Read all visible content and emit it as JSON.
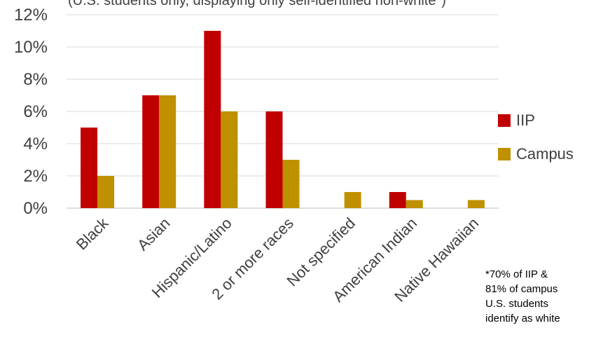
{
  "chart_data": {
    "type": "bar",
    "subtitle": "(U.S. students only, displaying only self-identified non-white*)",
    "categories": [
      "Black",
      "Asian",
      "Hispanic/Latino",
      "2 or more races",
      "Not specified",
      "American Indian",
      "Native Hawaiian"
    ],
    "series": [
      {
        "name": "IIP",
        "color": "#c00000",
        "values": [
          5,
          7,
          11,
          6,
          0,
          1,
          0
        ]
      },
      {
        "name": "Campus",
        "color": "#bf9000",
        "values": [
          2,
          7,
          6,
          3,
          1,
          0.5,
          0.5
        ]
      }
    ],
    "y_ticks": [
      "0%",
      "2%",
      "4%",
      "6%",
      "8%",
      "10%",
      "12%"
    ],
    "ylim": [
      0,
      12
    ],
    "ylabel": "",
    "xlabel": "",
    "grid": true,
    "legend_position": "right"
  },
  "footnote": {
    "lines": [
      "*70% of IIP &",
      "81% of campus",
      "U.S. students",
      "identify as white"
    ]
  }
}
